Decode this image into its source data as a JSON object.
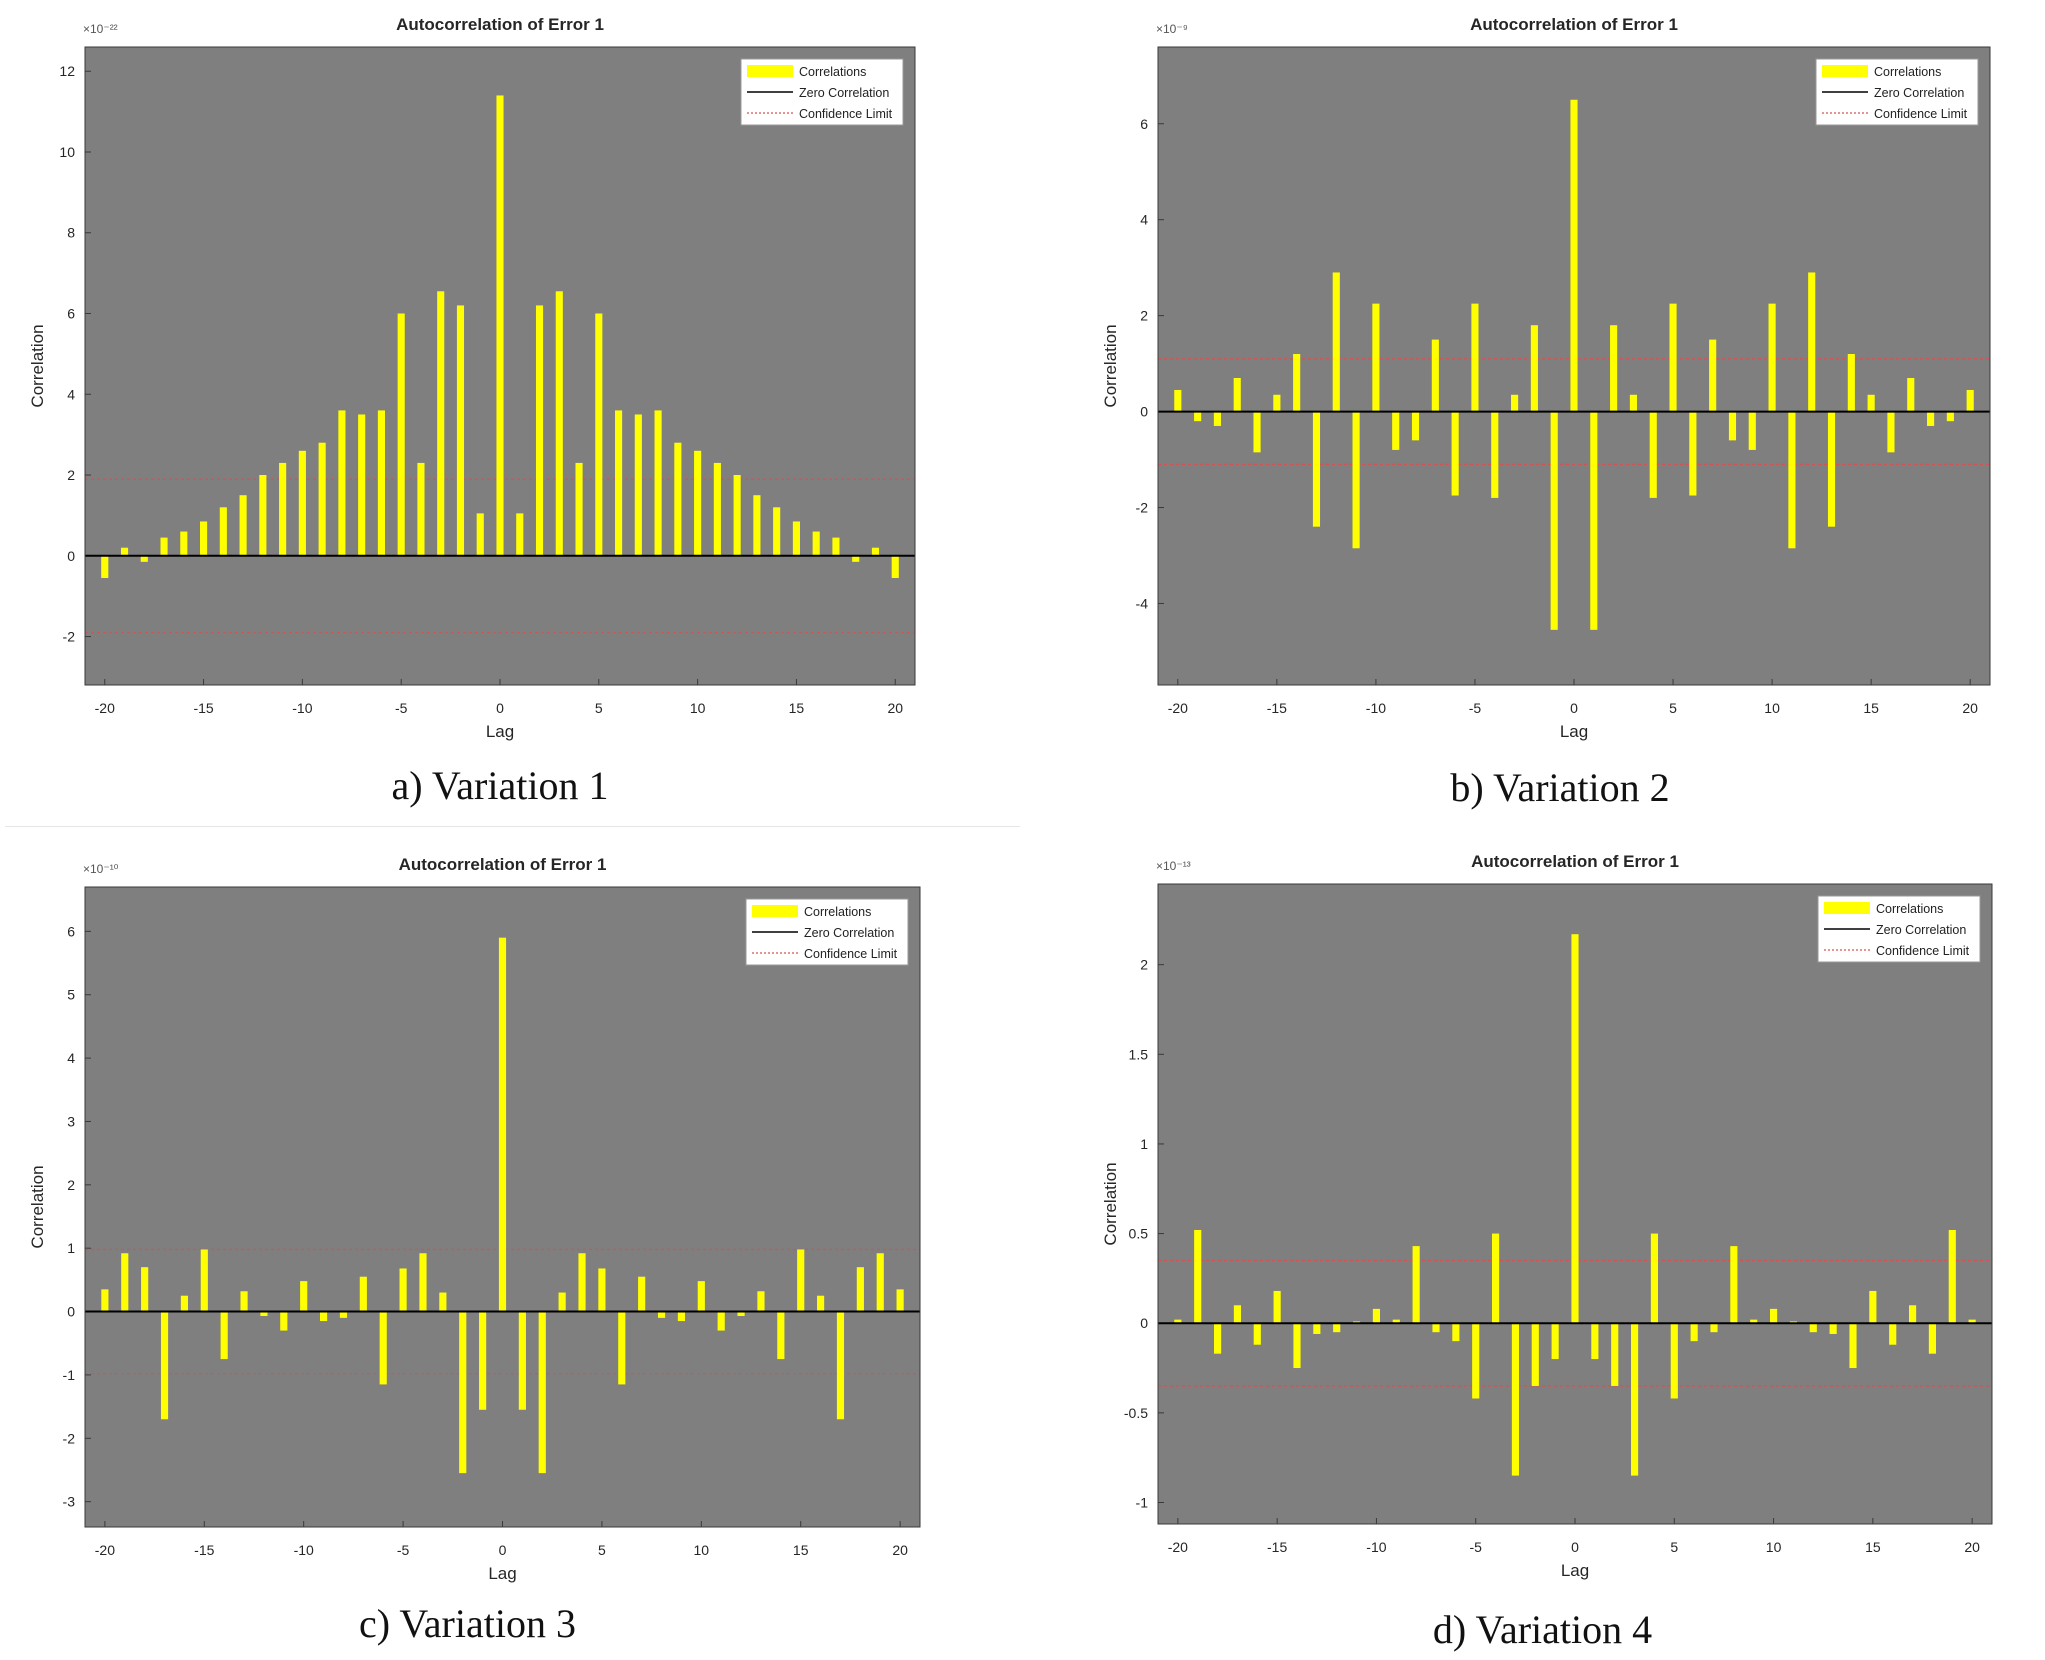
{
  "figure": {
    "captions": [
      "a) Variation 1",
      "b) Variation 2",
      "c) Variation 3",
      "d) Variation 4"
    ]
  },
  "colors": {
    "plot_bg": "#7f7f7f",
    "bar": "#ffff00",
    "zero_line": "#000000",
    "confidence": "#d95050",
    "legend_bg": "#ffffff",
    "text": "#262626"
  },
  "chart_data": [
    {
      "type": "bar",
      "title": "Autocorrelation of Error 1",
      "xlabel": "Lag",
      "ylabel": "Correlation",
      "exponent_label": "×10⁻²²",
      "xlim": [
        -21,
        21
      ],
      "ylim": [
        -3.2,
        12.6
      ],
      "xticks": [
        -20,
        -15,
        -10,
        -5,
        0,
        5,
        10,
        15,
        20
      ],
      "yticks": [
        -2,
        0,
        2,
        4,
        6,
        8,
        10,
        12
      ],
      "legend": [
        "Correlations",
        "Zero Correlation",
        "Confidence Limit"
      ],
      "confidence_limit": 1.9,
      "x": [
        -20,
        -19,
        -18,
        -17,
        -16,
        -15,
        -14,
        -13,
        -12,
        -11,
        -10,
        -9,
        -8,
        -7,
        -6,
        -5,
        -4,
        -3,
        -2,
        -1,
        0,
        1,
        2,
        3,
        4,
        5,
        6,
        7,
        8,
        9,
        10,
        11,
        12,
        13,
        14,
        15,
        16,
        17,
        18,
        19,
        20
      ],
      "values": [
        -0.55,
        0.2,
        -0.15,
        0.45,
        0.6,
        0.85,
        1.2,
        1.5,
        2.0,
        2.3,
        2.6,
        2.8,
        3.6,
        3.5,
        3.6,
        6.0,
        2.3,
        6.55,
        6.2,
        1.05,
        11.4,
        1.05,
        6.2,
        6.55,
        2.3,
        6.0,
        3.6,
        3.5,
        3.6,
        2.8,
        2.6,
        2.3,
        2.0,
        1.5,
        1.2,
        0.85,
        0.6,
        0.45,
        -0.15,
        0.2,
        -0.55
      ]
    },
    {
      "type": "bar",
      "title": "Autocorrelation of Error 1",
      "xlabel": "Lag",
      "ylabel": "Correlation",
      "exponent_label": "×10⁻⁹",
      "xlim": [
        -21,
        21
      ],
      "ylim": [
        -5.7,
        7.6
      ],
      "xticks": [
        -20,
        -15,
        -10,
        -5,
        0,
        5,
        10,
        15,
        20
      ],
      "yticks": [
        -4,
        -2,
        0,
        2,
        4,
        6
      ],
      "legend": [
        "Correlations",
        "Zero Correlation",
        "Confidence Limit"
      ],
      "confidence_limit": 1.1,
      "x": [
        -20,
        -19,
        -18,
        -17,
        -16,
        -15,
        -14,
        -13,
        -12,
        -11,
        -10,
        -9,
        -8,
        -7,
        -6,
        -5,
        -4,
        -3,
        -2,
        -1,
        0,
        1,
        2,
        3,
        4,
        5,
        6,
        7,
        8,
        9,
        10,
        11,
        12,
        13,
        14,
        15,
        16,
        17,
        18,
        19,
        20
      ],
      "values": [
        0.45,
        -0.2,
        -0.3,
        0.7,
        -0.85,
        0.35,
        1.2,
        -2.4,
        2.9,
        -2.85,
        2.25,
        -0.8,
        -0.6,
        1.5,
        -1.75,
        2.25,
        -1.8,
        0.35,
        1.8,
        -4.55,
        6.5,
        -4.55,
        1.8,
        0.35,
        -1.8,
        2.25,
        -1.75,
        1.5,
        -0.6,
        -0.8,
        2.25,
        -2.85,
        2.9,
        -2.4,
        1.2,
        0.35,
        -0.85,
        0.7,
        -0.3,
        -0.2,
        0.45
      ]
    },
    {
      "type": "bar",
      "title": "Autocorrelation of Error 1",
      "xlabel": "Lag",
      "ylabel": "Correlation",
      "exponent_label": "×10⁻¹⁰",
      "xlim": [
        -21,
        21
      ],
      "ylim": [
        -3.4,
        6.7
      ],
      "xticks": [
        -20,
        -15,
        -10,
        -5,
        0,
        5,
        10,
        15,
        20
      ],
      "yticks": [
        -3,
        -2,
        -1,
        0,
        1,
        2,
        3,
        4,
        5,
        6
      ],
      "legend": [
        "Correlations",
        "Zero Correlation",
        "Confidence Limit"
      ],
      "confidence_limit": 0.98,
      "x": [
        -20,
        -19,
        -18,
        -17,
        -16,
        -15,
        -14,
        -13,
        -12,
        -11,
        -10,
        -9,
        -8,
        -7,
        -6,
        -5,
        -4,
        -3,
        -2,
        -1,
        0,
        1,
        2,
        3,
        4,
        5,
        6,
        7,
        8,
        9,
        10,
        11,
        12,
        13,
        14,
        15,
        16,
        17,
        18,
        19,
        20
      ],
      "values": [
        0.35,
        0.92,
        0.7,
        -1.7,
        0.25,
        0.98,
        -0.75,
        0.32,
        -0.07,
        -0.3,
        0.48,
        -0.15,
        -0.1,
        0.55,
        -1.15,
        0.68,
        0.92,
        0.3,
        -2.55,
        -1.55,
        5.9,
        -1.55,
        -2.55,
        0.3,
        0.92,
        0.68,
        -1.15,
        0.55,
        -0.1,
        -0.15,
        0.48,
        -0.3,
        -0.07,
        0.32,
        -0.75,
        0.98,
        0.25,
        -1.7,
        0.7,
        0.92,
        0.35
      ]
    },
    {
      "type": "bar",
      "title": "Autocorrelation of Error 1",
      "xlabel": "Lag",
      "ylabel": "Correlation",
      "exponent_label": "×10⁻¹³",
      "xlim": [
        -21,
        21
      ],
      "ylim": [
        -1.12,
        2.45
      ],
      "xticks": [
        -20,
        -15,
        -10,
        -5,
        0,
        5,
        10,
        15,
        20
      ],
      "yticks": [
        -1,
        -0.5,
        0,
        0.5,
        1,
        1.5,
        2
      ],
      "legend": [
        "Correlations",
        "Zero Correlation",
        "Confidence Limit"
      ],
      "confidence_limit": 0.35,
      "x": [
        -20,
        -19,
        -18,
        -17,
        -16,
        -15,
        -14,
        -13,
        -12,
        -11,
        -10,
        -9,
        -8,
        -7,
        -6,
        -5,
        -4,
        -3,
        -2,
        -1,
        0,
        1,
        2,
        3,
        4,
        5,
        6,
        7,
        8,
        9,
        10,
        11,
        12,
        13,
        14,
        15,
        16,
        17,
        18,
        19,
        20
      ],
      "values": [
        0.02,
        0.52,
        -0.17,
        0.1,
        -0.12,
        0.18,
        -0.25,
        -0.06,
        -0.05,
        0.01,
        0.08,
        0.02,
        0.43,
        -0.05,
        -0.1,
        -0.42,
        0.5,
        -0.85,
        -0.35,
        -0.2,
        2.17,
        -0.2,
        -0.35,
        -0.85,
        0.5,
        -0.42,
        -0.1,
        -0.05,
        0.43,
        0.02,
        0.08,
        0.01,
        -0.05,
        -0.06,
        -0.25,
        0.18,
        -0.12,
        0.1,
        -0.17,
        0.52,
        0.02
      ]
    }
  ]
}
